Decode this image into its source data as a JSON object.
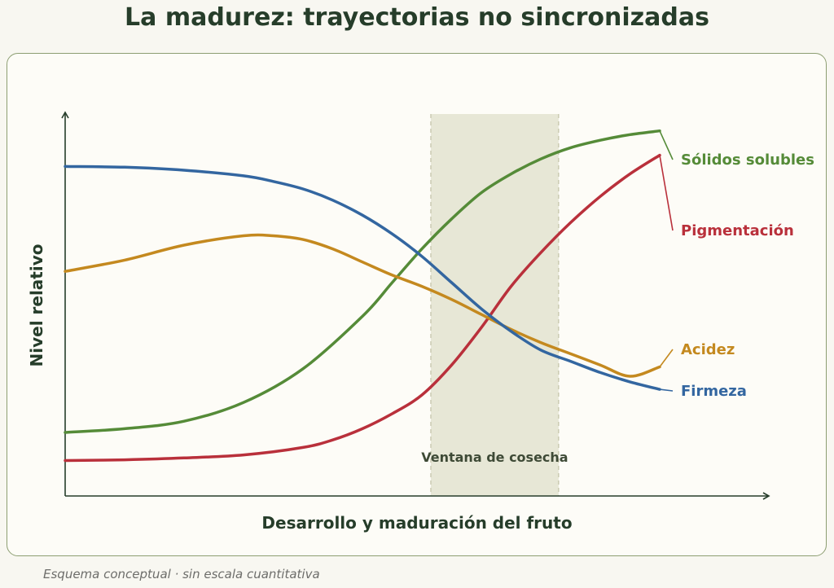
{
  "title": "La madurez: trayectorias no sincronizadas",
  "footnote": "Esquema conceptual · sin escala cuantitativa",
  "colors": {
    "background": "#f8f7f1",
    "panel_border": "#8d9e72",
    "window_fill": "#e7e7d6",
    "axis": "#263d2a"
  },
  "chart_data": {
    "type": "line",
    "xlabel": "Desarrollo y maduración del fruto",
    "ylabel": "Nivel relativo",
    "xlim": [
      0,
      100
    ],
    "ylim": [
      0,
      100
    ],
    "grid": false,
    "legend": "end-of-line labels, right",
    "band": {
      "label": "Ventana de cosecha",
      "x": [
        61.5,
        83
      ]
    },
    "series": [
      {
        "name": "Sólidos solubles",
        "color": "#558b38",
        "x": [
          0,
          10,
          20,
          30,
          40,
          50,
          55,
          60,
          65,
          70,
          75,
          80,
          85,
          90,
          95,
          100
        ],
        "y": [
          15,
          16,
          18,
          23,
          32,
          46,
          55,
          64,
          72,
          79,
          84,
          88,
          91,
          93,
          94.5,
          95.5
        ]
      },
      {
        "name": "Pigmentación",
        "color": "#b9303b",
        "x": [
          0,
          10,
          20,
          30,
          40,
          45,
          50,
          55,
          60,
          65,
          70,
          75,
          80,
          85,
          90,
          95,
          100
        ],
        "y": [
          7.5,
          7.7,
          8.2,
          9,
          11,
          13,
          16,
          20,
          25,
          33,
          43,
          54,
          63,
          71,
          78,
          84,
          89
        ]
      },
      {
        "name": "Acidez",
        "color": "#c4891f",
        "x": [
          0,
          10,
          20,
          30,
          35,
          40,
          45,
          50,
          55,
          60,
          65,
          70,
          75,
          80,
          85,
          90,
          95,
          100
        ],
        "y": [
          58,
          61,
          65,
          67.5,
          67.5,
          66.5,
          64,
          60.5,
          57,
          54,
          50.5,
          46.5,
          42.5,
          39,
          36,
          33,
          30,
          32.5
        ]
      },
      {
        "name": "Firmeza",
        "color": "#3366a0",
        "x": [
          0,
          10,
          20,
          30,
          35,
          40,
          45,
          50,
          55,
          60,
          65,
          70,
          75,
          80,
          85,
          90,
          95,
          100
        ],
        "y": [
          86,
          85.8,
          85,
          83.5,
          82,
          80,
          77,
          73,
          68,
          62,
          55,
          48,
          42,
          37,
          34,
          31,
          28.5,
          26.5
        ]
      }
    ]
  }
}
